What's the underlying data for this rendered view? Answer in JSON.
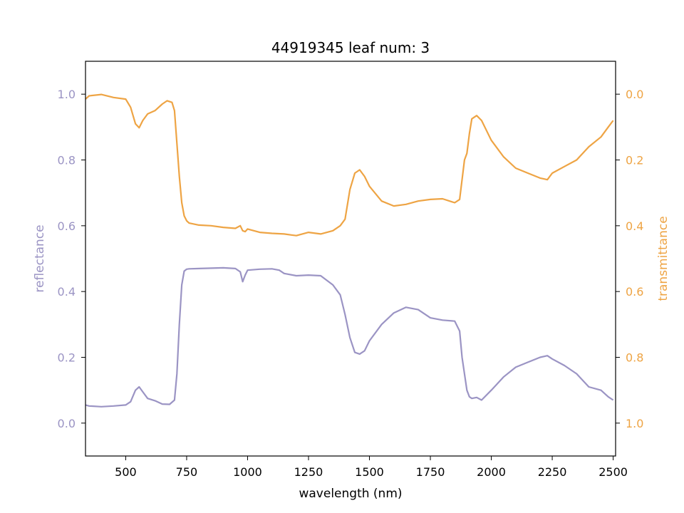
{
  "chart_data": {
    "type": "line",
    "title": "44919345 leaf num: 3",
    "xlabel": "wavelength (nm)",
    "ylabel": "reflectance",
    "y2label": "transmittance",
    "xlim": [
      335,
      2510
    ],
    "ylim": [
      -0.1,
      1.1
    ],
    "y2lim": [
      1.1,
      -0.1
    ],
    "y2_inverted": true,
    "grid": false,
    "legend": "none",
    "x_ticks": [
      500,
      750,
      1000,
      1250,
      1500,
      1750,
      2000,
      2250,
      2500
    ],
    "y_ticks": [
      0.0,
      0.2,
      0.4,
      0.6,
      0.8,
      1.0
    ],
    "y2_ticks": [
      0.0,
      0.2,
      0.4,
      0.6,
      0.8,
      1.0
    ],
    "colors": {
      "reflectance": "#9b94c4",
      "transmittance": "#eea444"
    },
    "series": [
      {
        "axis": "left",
        "color": "#9b94c4",
        "x": [
          335,
          350,
          400,
          450,
          500,
          520,
          540,
          555,
          570,
          590,
          620,
          650,
          680,
          700,
          710,
          720,
          730,
          740,
          750,
          760,
          800,
          850,
          900,
          950,
          970,
          980,
          990,
          1000,
          1050,
          1100,
          1130,
          1150,
          1200,
          1250,
          1300,
          1350,
          1380,
          1400,
          1420,
          1440,
          1460,
          1480,
          1500,
          1550,
          1600,
          1650,
          1700,
          1750,
          1800,
          1850,
          1870,
          1880,
          1890,
          1900,
          1910,
          1920,
          1940,
          1960,
          2000,
          2050,
          2100,
          2150,
          2200,
          2230,
          2250,
          2300,
          2350,
          2400,
          2450,
          2480,
          2500
        ],
        "y": [
          0.055,
          0.052,
          0.05,
          0.052,
          0.055,
          0.065,
          0.1,
          0.11,
          0.095,
          0.075,
          0.068,
          0.058,
          0.057,
          0.07,
          0.15,
          0.3,
          0.42,
          0.462,
          0.468,
          0.469,
          0.47,
          0.471,
          0.472,
          0.47,
          0.46,
          0.43,
          0.45,
          0.465,
          0.468,
          0.469,
          0.465,
          0.455,
          0.448,
          0.45,
          0.448,
          0.42,
          0.39,
          0.33,
          0.26,
          0.215,
          0.21,
          0.22,
          0.25,
          0.3,
          0.335,
          0.352,
          0.345,
          0.32,
          0.313,
          0.31,
          0.28,
          0.2,
          0.15,
          0.1,
          0.08,
          0.075,
          0.078,
          0.07,
          0.1,
          0.14,
          0.17,
          0.185,
          0.2,
          0.205,
          0.195,
          0.175,
          0.15,
          0.11,
          0.1,
          0.08,
          0.07
        ]
      },
      {
        "axis": "right",
        "color": "#eea444",
        "x": [
          335,
          350,
          400,
          450,
          500,
          520,
          540,
          555,
          570,
          590,
          620,
          650,
          670,
          690,
          700,
          710,
          720,
          730,
          740,
          750,
          760,
          800,
          850,
          900,
          950,
          970,
          980,
          990,
          1000,
          1050,
          1100,
          1150,
          1180,
          1200,
          1250,
          1300,
          1350,
          1380,
          1400,
          1420,
          1440,
          1460,
          1480,
          1500,
          1550,
          1600,
          1650,
          1700,
          1750,
          1800,
          1850,
          1870,
          1880,
          1890,
          1900,
          1910,
          1920,
          1940,
          1960,
          2000,
          2050,
          2100,
          2150,
          2200,
          2230,
          2250,
          2300,
          2350,
          2400,
          2450,
          2480,
          2500
        ],
        "y": [
          0.015,
          0.005,
          0.001,
          0.01,
          0.015,
          0.04,
          0.09,
          0.102,
          0.08,
          0.06,
          0.05,
          0.03,
          0.02,
          0.025,
          0.05,
          0.15,
          0.25,
          0.33,
          0.37,
          0.385,
          0.392,
          0.398,
          0.4,
          0.405,
          0.408,
          0.4,
          0.415,
          0.418,
          0.41,
          0.42,
          0.423,
          0.425,
          0.428,
          0.43,
          0.42,
          0.425,
          0.415,
          0.4,
          0.38,
          0.29,
          0.24,
          0.23,
          0.25,
          0.28,
          0.325,
          0.34,
          0.335,
          0.325,
          0.32,
          0.318,
          0.33,
          0.32,
          0.26,
          0.2,
          0.18,
          0.12,
          0.075,
          0.065,
          0.08,
          0.14,
          0.19,
          0.225,
          0.24,
          0.255,
          0.26,
          0.24,
          0.22,
          0.2,
          0.16,
          0.13,
          0.1,
          0.08
        ]
      }
    ]
  }
}
